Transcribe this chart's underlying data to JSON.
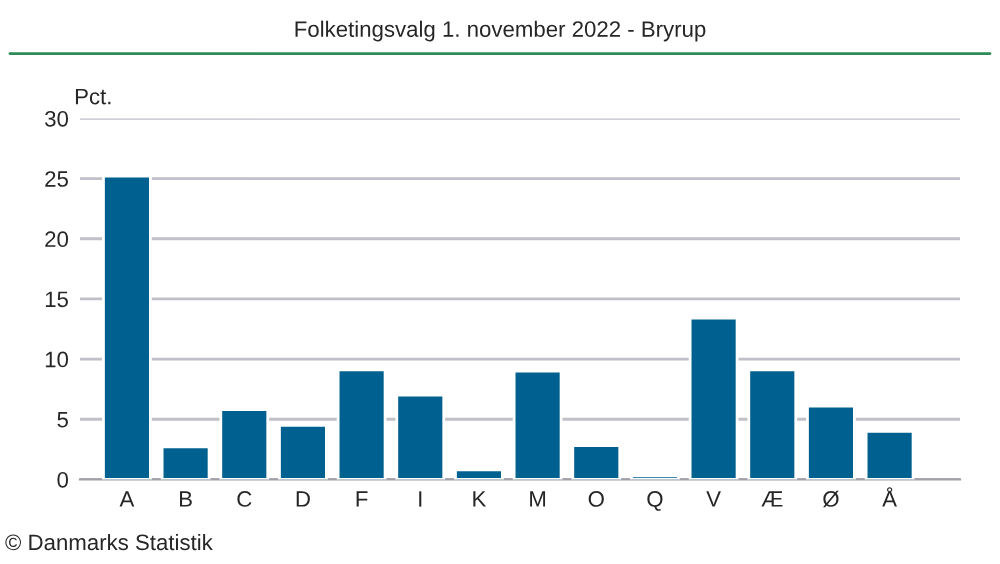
{
  "chart_data": {
    "type": "bar",
    "title": "Folketingsvalg 1. november 2022 - Bryrup",
    "ylabel": "Pct.",
    "categories": [
      "A",
      "B",
      "C",
      "D",
      "F",
      "I",
      "K",
      "M",
      "O",
      "Q",
      "V",
      "Æ",
      "Ø",
      "Å"
    ],
    "values": [
      25.2,
      2.7,
      5.8,
      4.5,
      9.1,
      7.0,
      0.8,
      9.0,
      2.8,
      0.3,
      13.4,
      9.1,
      6.1,
      4.0
    ],
    "color": "#006090",
    "ylim": [
      0,
      30
    ],
    "yticks": [
      0,
      5,
      10,
      15,
      20,
      25,
      30
    ],
    "grid": "y",
    "annotations": [
      "© Danmarks Statistik"
    ]
  }
}
